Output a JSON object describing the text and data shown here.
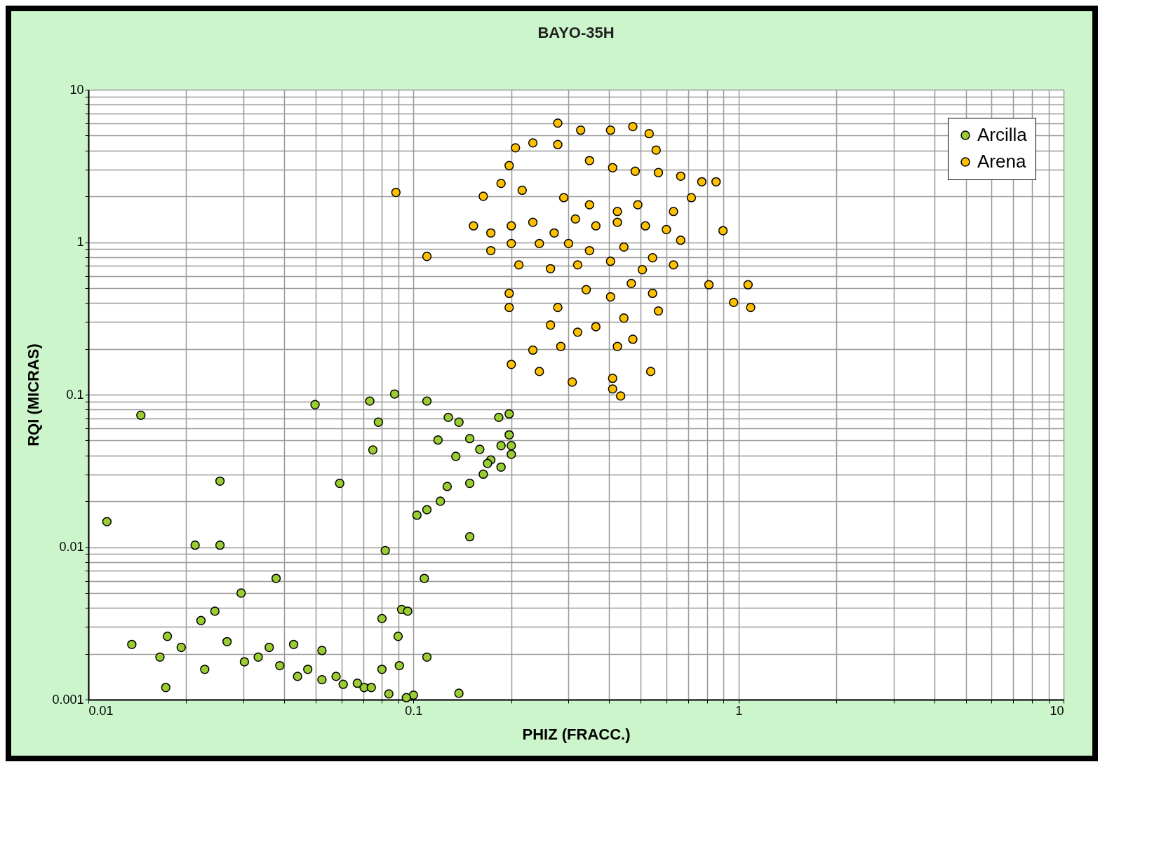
{
  "chart_data": {
    "type": "scatter",
    "title": "BAYO-35H",
    "xlabel": "PHIZ (FRACC.)",
    "ylabel": "RQI (MICRAS)",
    "log": "xy",
    "grid": true,
    "legend": "top right",
    "marker": "circle",
    "xlim": [
      0.01,
      10
    ],
    "ylim": [
      0.001,
      10
    ],
    "xticks": [
      0.01,
      {
        "value": 0.02,
        "label": null
      },
      {
        "value": 0.03,
        "label": null
      },
      {
        "value": 0.04,
        "label": null
      },
      {
        "value": 0.05,
        "label": null
      },
      {
        "value": 0.06,
        "label": null
      },
      {
        "value": 0.07,
        "label": null
      },
      {
        "value": 0.08,
        "label": null
      },
      {
        "value": 0.09,
        "label": null
      },
      0.1,
      {
        "value": 0.2,
        "label": null
      },
      {
        "value": 0.3,
        "label": null
      },
      {
        "value": 0.4,
        "label": null
      },
      {
        "value": 0.5,
        "label": null
      },
      {
        "value": 0.6,
        "label": null
      },
      {
        "value": 0.7,
        "label": null
      },
      {
        "value": 0.8,
        "label": null
      },
      {
        "value": 0.9,
        "label": null
      },
      1,
      {
        "value": 2,
        "label": null
      },
      {
        "value": 3,
        "label": null
      },
      {
        "value": 4,
        "label": null
      },
      {
        "value": 5,
        "label": null
      },
      {
        "value": 6,
        "label": null
      },
      {
        "value": 7,
        "label": null
      },
      {
        "value": 8,
        "label": null
      },
      {
        "value": 9,
        "label": null
      },
      10
    ],
    "yticks": [
      0.001,
      {
        "value": 0.002,
        "label": null
      },
      {
        "value": 0.003,
        "label": null
      },
      {
        "value": 0.004,
        "label": null
      },
      {
        "value": 0.005,
        "label": null
      },
      {
        "value": 0.006,
        "label": null
      },
      {
        "value": 0.007,
        "label": null
      },
      {
        "value": 0.008,
        "label": null
      },
      {
        "value": 0.009,
        "label": null
      },
      0.01,
      {
        "value": 0.02,
        "label": null
      },
      {
        "value": 0.03,
        "label": null
      },
      {
        "value": 0.04,
        "label": null
      },
      {
        "value": 0.05,
        "label": null
      },
      {
        "value": 0.06,
        "label": null
      },
      {
        "value": 0.07,
        "label": null
      },
      {
        "value": 0.08,
        "label": null
      },
      {
        "value": 0.09,
        "label": null
      },
      0.1,
      {
        "value": 0.2,
        "label": null
      },
      {
        "value": 0.3,
        "label": null
      },
      {
        "value": 0.4,
        "label": null
      },
      {
        "value": 0.5,
        "label": null
      },
      {
        "value": 0.6,
        "label": null
      },
      {
        "value": 0.7,
        "label": null
      },
      {
        "value": 0.8,
        "label": null
      },
      {
        "value": 0.9,
        "label": null
      },
      1,
      {
        "value": 2,
        "label": null
      },
      {
        "value": 3,
        "label": null
      },
      {
        "value": 4,
        "label": null
      },
      {
        "value": 5,
        "label": null
      },
      {
        "value": 6,
        "label": null
      },
      {
        "value": 7,
        "label": null
      },
      {
        "value": 8,
        "label": null
      },
      {
        "value": 9,
        "label": null
      },
      10
    ],
    "series": [
      {
        "name": "Arcilla",
        "color": "#9acd32",
        "x": [
          0.0114,
          0.0145,
          0.0254,
          0.0213,
          0.0254,
          0.0498,
          0.0734,
          0.0875,
          0.078,
          0.075,
          0.0593,
          0.11,
          0.0819,
          0.0378,
          0.108,
          0.149,
          0.0295,
          0.0245,
          0.0222,
          0.0175,
          0.0136,
          0.0166,
          0.0193,
          0.0173,
          0.0228,
          0.0267,
          0.0302,
          0.036,
          0.0428,
          0.0523,
          0.044,
          0.0523,
          0.0608,
          0.0705,
          0.08,
          0.0905,
          0.092,
          0.096,
          0.08,
          0.0897,
          0.11,
          0.1,
          0.084,
          0.138,
          0.1025,
          0.11,
          0.121,
          0.127,
          0.135,
          0.119,
          0.128,
          0.138,
          0.149,
          0.164,
          0.149,
          0.16,
          0.173,
          0.186,
          0.197,
          0.2,
          0.183,
          0.197,
          0.186,
          0.2,
          0.169,
          0.0333,
          0.0388,
          0.0473,
          0.0578,
          0.0672,
          0.0742,
          0.0951
        ],
        "values": [
          0.0147,
          0.0733,
          0.0271,
          0.0103,
          0.0103,
          0.086,
          0.0908,
          0.101,
          0.066,
          0.0434,
          0.0262,
          0.0908,
          0.0095,
          0.00624,
          0.00624,
          0.0117,
          0.005,
          0.0038,
          0.0033,
          0.0026,
          0.0023,
          0.0019,
          0.0022,
          0.0012,
          0.00158,
          0.0024,
          0.00177,
          0.0022,
          0.0023,
          0.0021,
          0.00142,
          0.00135,
          0.00126,
          0.0012,
          0.00158,
          0.00167,
          0.0039,
          0.0038,
          0.0034,
          0.0026,
          0.0019,
          0.00107,
          0.00109,
          0.0011,
          0.0162,
          0.0176,
          0.02,
          0.025,
          0.0394,
          0.0504,
          0.071,
          0.066,
          0.0262,
          0.0301,
          0.0515,
          0.0438,
          0.0373,
          0.0463,
          0.0545,
          0.0463,
          0.071,
          0.0748,
          0.0335,
          0.0406,
          0.0354,
          0.0019,
          0.00167,
          0.00158,
          0.00142,
          0.00128,
          0.0012,
          0.00103
        ]
      },
      {
        "name": "Arena",
        "color": "#ffc000",
        "x": [
          0.0883,
          0.11,
          0.278,
          0.327,
          0.404,
          0.473,
          0.531,
          0.558,
          0.233,
          0.206,
          0.278,
          0.197,
          0.348,
          0.41,
          0.481,
          0.567,
          0.664,
          0.771,
          0.853,
          0.164,
          0.216,
          0.186,
          0.29,
          0.348,
          0.424,
          0.49,
          0.631,
          0.716,
          0.896,
          0.153,
          0.173,
          0.2,
          0.233,
          0.271,
          0.315,
          0.364,
          0.424,
          0.517,
          0.6,
          0.664,
          0.2,
          0.244,
          0.3,
          0.348,
          0.444,
          0.544,
          0.173,
          0.211,
          0.264,
          0.32,
          0.404,
          0.506,
          0.631,
          0.811,
          1.07,
          0.966,
          1.09,
          0.197,
          0.197,
          0.278,
          0.34,
          0.404,
          0.468,
          0.567,
          0.544,
          0.264,
          0.32,
          0.364,
          0.444,
          0.233,
          0.284,
          0.424,
          0.473,
          0.2,
          0.244,
          0.308,
          0.41,
          0.537,
          0.434,
          0.41
        ],
        "values": [
          2.12,
          0.807,
          6.04,
          5.43,
          5.43,
          5.73,
          5.15,
          4.02,
          4.48,
          4.16,
          4.37,
          3.18,
          3.43,
          3.08,
          2.92,
          2.86,
          2.71,
          2.49,
          2.49,
          2.0,
          2.19,
          2.43,
          1.96,
          1.76,
          1.59,
          1.76,
          1.59,
          1.96,
          1.19,
          1.28,
          1.15,
          1.28,
          1.35,
          1.15,
          1.42,
          1.28,
          1.35,
          1.28,
          1.21,
          1.03,
          0.98,
          0.98,
          0.98,
          0.88,
          0.93,
          0.79,
          0.88,
          0.71,
          0.67,
          0.71,
          0.75,
          0.66,
          0.71,
          0.526,
          0.526,
          0.403,
          0.373,
          0.462,
          0.373,
          0.373,
          0.488,
          0.438,
          0.536,
          0.354,
          0.462,
          0.286,
          0.257,
          0.279,
          0.318,
          0.196,
          0.207,
          0.207,
          0.231,
          0.158,
          0.142,
          0.121,
          0.128,
          0.142,
          0.098,
          0.109
        ]
      }
    ]
  }
}
